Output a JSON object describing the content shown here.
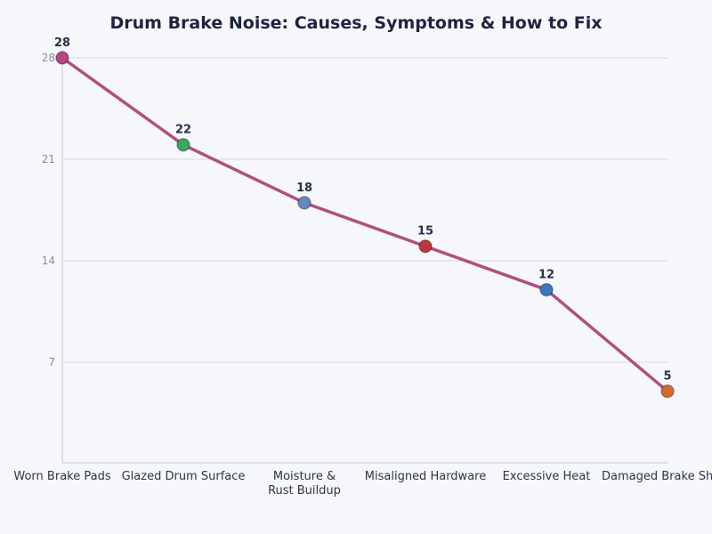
{
  "chart_data": {
    "type": "line",
    "title": "Drum Brake Noise: Causes, Symptoms & How to Fix",
    "xlabel": "",
    "ylabel": "",
    "categories": [
      "Worn Brake Pads",
      "Glazed Drum Surface",
      "Moisture & Rust Buildup",
      "Misaligned Hardware",
      "Excessive Heat",
      "Damaged Brake Shoes"
    ],
    "values": [
      28,
      22,
      18,
      15,
      12,
      5
    ],
    "ylim": [
      0,
      28
    ],
    "yticks": [
      7,
      14,
      21,
      28
    ],
    "grid": true,
    "line_color": "#b04f80",
    "point_colors": [
      "#b5457f",
      "#38a860",
      "#6a85c0",
      "#c0353a",
      "#3a77c0",
      "#d5692f"
    ]
  }
}
